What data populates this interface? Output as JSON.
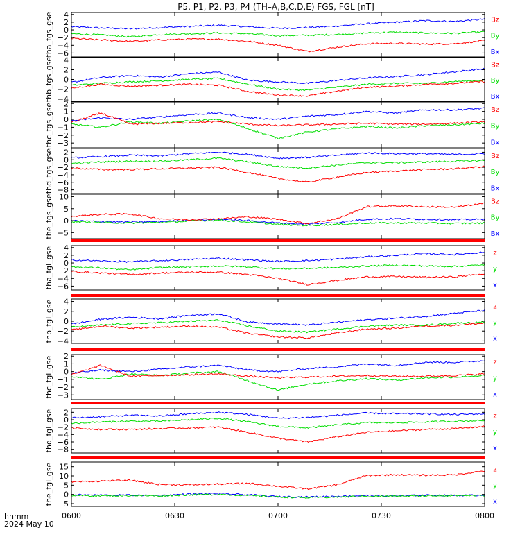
{
  "title": "P5, P1, P2, P3, P4 (TH–A,B,C,D,E) FGS, FGL [nT]",
  "x_axis": {
    "ticks": [
      "0600",
      "0630",
      "0700",
      "0730",
      "0800"
    ],
    "tick_values_min": [
      0,
      30,
      60,
      90,
      120
    ],
    "range_min": [
      0,
      120
    ],
    "footer_label": "hhmm",
    "footer_date": "2024 May 10"
  },
  "colors": {
    "x": "#0000ff",
    "y": "#00dd00",
    "z": "#ff0000",
    "frame": "#000000",
    "separator": "#ff0000"
  },
  "chart_data": [
    {
      "type": "line",
      "ylabel": "tha_fgs_gse",
      "yticks": [
        "4",
        "2",
        "0",
        "−2",
        "−4",
        "−6"
      ],
      "ytick_values": [
        4,
        2,
        0,
        -2,
        -4,
        -6
      ],
      "ylim": [
        -7,
        4.5
      ],
      "legend": [
        "Bz",
        "By",
        "Bx"
      ],
      "series": [
        {
          "name": "Bx",
          "values": [
            0.8,
            0.5,
            0.3,
            0.6,
            0.9,
            1.2,
            0.8,
            0.4,
            0.6,
            1.0,
            1.6,
            2.0,
            2.4,
            2.2,
            2.8
          ]
        },
        {
          "name": "By",
          "values": [
            -1.0,
            -1.3,
            -1.8,
            -1.2,
            -1.0,
            -0.8,
            -1.0,
            -1.5,
            -1.4,
            -1.2,
            -0.8,
            -0.6,
            -0.8,
            -0.9,
            -0.5
          ]
        },
        {
          "name": "Bz",
          "values": [
            -2.2,
            -2.6,
            -3.0,
            -2.6,
            -2.4,
            -2.4,
            -3.0,
            -4.0,
            -5.6,
            -4.5,
            -3.6,
            -3.5,
            -3.7,
            -3.6,
            -2.8
          ]
        }
      ]
    },
    {
      "type": "line",
      "ylabel": "thb_fgs_gse",
      "yticks": [
        "4",
        "2",
        "0",
        "−2",
        "−4"
      ],
      "ytick_values": [
        4,
        2,
        0,
        -2,
        -4
      ],
      "ylim": [
        -4.5,
        4.5
      ],
      "legend": [
        "Bz",
        "By",
        "Bx"
      ],
      "series": [
        {
          "name": "Bx",
          "values": [
            -0.6,
            0.4,
            0.8,
            0.5,
            1.2,
            1.5,
            -0.2,
            -0.5,
            -0.8,
            -0.2,
            0.3,
            0.6,
            1.0,
            1.6,
            2.2
          ]
        },
        {
          "name": "By",
          "values": [
            -1.2,
            -0.8,
            -0.5,
            -0.3,
            0.0,
            0.2,
            -1.0,
            -2.0,
            -2.2,
            -1.6,
            -1.0,
            -0.8,
            -0.8,
            -0.4,
            -0.2
          ]
        },
        {
          "name": "Bz",
          "values": [
            -1.8,
            -1.0,
            -1.4,
            -1.2,
            -1.0,
            -1.2,
            -2.5,
            -3.2,
            -3.4,
            -2.4,
            -1.6,
            -1.4,
            -1.0,
            -0.8,
            -0.4
          ]
        }
      ]
    },
    {
      "type": "line",
      "ylabel": "thc_fgs_gse",
      "yticks": [
        "2",
        "1",
        "0",
        "−1",
        "−2",
        "−3"
      ],
      "ytick_values": [
        2,
        1,
        0,
        -1,
        -2,
        -3
      ],
      "ylim": [
        -3.6,
        2.2
      ],
      "legend": [
        "Bz",
        "By",
        "Bx"
      ],
      "series": [
        {
          "name": "Bx",
          "values": [
            -0.2,
            0.2,
            0.0,
            0.3,
            0.6,
            0.8,
            0.2,
            0.0,
            0.4,
            0.6,
            1.0,
            0.8,
            1.2,
            1.2,
            1.4
          ]
        },
        {
          "name": "By",
          "values": [
            -0.6,
            -1.0,
            -0.3,
            -0.5,
            -0.2,
            0.0,
            -1.2,
            -2.4,
            -1.6,
            -1.2,
            -0.9,
            -1.1,
            -0.8,
            -0.7,
            -0.5
          ]
        },
        {
          "name": "Bz",
          "values": [
            -0.4,
            0.8,
            -0.6,
            -0.5,
            -0.4,
            -0.3,
            -0.6,
            -0.8,
            -0.7,
            -0.6,
            -0.5,
            -0.6,
            -0.6,
            -0.5,
            -0.3
          ]
        }
      ]
    },
    {
      "type": "line",
      "ylabel": "thd_fgs_gse",
      "yticks": [
        "2",
        "0",
        "−2",
        "−4",
        "−6",
        "−8"
      ],
      "ytick_values": [
        2,
        0,
        -2,
        -4,
        -6,
        -8
      ],
      "ylim": [
        -9,
        3
      ],
      "legend": [
        "Bz",
        "By",
        "Bx"
      ],
      "series": [
        {
          "name": "Bx",
          "values": [
            0.5,
            0.8,
            1.2,
            1.0,
            1.6,
            2.0,
            1.4,
            0.4,
            0.6,
            1.2,
            1.8,
            1.6,
            1.6,
            1.4,
            1.6
          ]
        },
        {
          "name": "By",
          "values": [
            -1.0,
            -0.6,
            -0.4,
            -0.4,
            0.0,
            0.4,
            -0.6,
            -1.8,
            -2.2,
            -1.4,
            -0.8,
            -0.8,
            -0.6,
            -0.4,
            -0.2
          ]
        },
        {
          "name": "Bz",
          "values": [
            -2.2,
            -2.6,
            -2.6,
            -2.4,
            -2.2,
            -2.0,
            -3.4,
            -5.0,
            -6.0,
            -4.6,
            -3.4,
            -3.0,
            -2.6,
            -2.4,
            -1.8
          ]
        }
      ]
    },
    {
      "type": "line",
      "ylabel": "the_fgs_gse",
      "yticks": [
        "10",
        "5",
        "0",
        "−5"
      ],
      "ytick_values": [
        10,
        5,
        0,
        -5
      ],
      "ylim": [
        -7.5,
        11
      ],
      "legend": [
        "Bz",
        "By",
        "Bx"
      ],
      "series": [
        {
          "name": "Bx",
          "values": [
            0.0,
            -0.4,
            -0.6,
            -0.4,
            0.2,
            0.6,
            0.0,
            -1.0,
            -1.4,
            -0.8,
            0.6,
            0.8,
            0.6,
            0.4,
            0.6
          ]
        },
        {
          "name": "By",
          "values": [
            -0.4,
            -0.8,
            -1.0,
            -0.8,
            -0.2,
            0.2,
            -0.6,
            -1.6,
            -2.0,
            -1.6,
            -1.0,
            -1.0,
            -1.0,
            -1.2,
            -1.0
          ]
        },
        {
          "name": "Bz",
          "values": [
            1.8,
            2.6,
            2.8,
            0.8,
            0.4,
            0.8,
            1.6,
            0.6,
            -1.2,
            0.8,
            5.8,
            6.2,
            5.8,
            5.6,
            7.2
          ]
        }
      ]
    },
    {
      "type": "line",
      "ylabel": "tha_fgl_gse",
      "yticks": [
        "4",
        "2",
        "0",
        "−2",
        "−4",
        "−6"
      ],
      "ytick_values": [
        4,
        2,
        0,
        -2,
        -4,
        -6
      ],
      "ylim": [
        -7,
        4.5
      ],
      "legend": [
        "z",
        "y",
        "x"
      ],
      "series": [
        {
          "name": "x",
          "values": [
            0.8,
            0.5,
            0.3,
            0.6,
            0.9,
            1.2,
            0.8,
            0.4,
            0.6,
            1.0,
            1.6,
            2.0,
            2.4,
            2.2,
            2.8
          ]
        },
        {
          "name": "y",
          "values": [
            -1.0,
            -1.3,
            -1.8,
            -1.2,
            -1.0,
            -0.8,
            -1.0,
            -1.5,
            -1.4,
            -1.2,
            -0.8,
            -0.6,
            -0.8,
            -0.9,
            -0.5
          ]
        },
        {
          "name": "z",
          "values": [
            -2.2,
            -2.6,
            -3.0,
            -2.6,
            -2.4,
            -2.4,
            -3.0,
            -4.0,
            -5.6,
            -4.5,
            -3.6,
            -3.5,
            -3.7,
            -3.6,
            -2.8
          ]
        }
      ]
    },
    {
      "type": "line",
      "ylabel": "thb_fgl_gse",
      "yticks": [
        "4",
        "2",
        "0",
        "−2",
        "−4"
      ],
      "ytick_values": [
        4,
        2,
        0,
        -2,
        -4
      ],
      "ylim": [
        -4.5,
        4.5
      ],
      "legend": [
        "z",
        "y",
        "x"
      ],
      "series": [
        {
          "name": "x",
          "values": [
            -0.6,
            0.4,
            0.8,
            0.5,
            1.2,
            1.5,
            -0.2,
            -0.5,
            -0.8,
            -0.2,
            0.3,
            0.6,
            1.0,
            1.6,
            2.2
          ]
        },
        {
          "name": "y",
          "values": [
            -1.2,
            -0.8,
            -0.5,
            -0.3,
            0.0,
            0.2,
            -1.0,
            -2.0,
            -2.2,
            -1.6,
            -1.0,
            -0.8,
            -0.8,
            -0.4,
            -0.2
          ]
        },
        {
          "name": "z",
          "values": [
            -1.8,
            -1.0,
            -1.4,
            -1.2,
            -1.0,
            -1.2,
            -2.5,
            -3.2,
            -3.4,
            -2.4,
            -1.6,
            -1.4,
            -1.0,
            -0.8,
            -0.4
          ]
        }
      ]
    },
    {
      "type": "line",
      "ylabel": "thc_fgl_gse",
      "yticks": [
        "2",
        "1",
        "0",
        "−1",
        "−2",
        "−3"
      ],
      "ytick_values": [
        2,
        1,
        0,
        -1,
        -2,
        -3
      ],
      "ylim": [
        -3.6,
        2.2
      ],
      "legend": [
        "z",
        "y",
        "x"
      ],
      "series": [
        {
          "name": "x",
          "values": [
            -0.2,
            0.2,
            0.0,
            0.3,
            0.6,
            0.8,
            0.2,
            0.0,
            0.4,
            0.6,
            1.0,
            0.8,
            1.2,
            1.2,
            1.4
          ]
        },
        {
          "name": "y",
          "values": [
            -0.6,
            -1.0,
            -0.3,
            -0.5,
            -0.2,
            0.0,
            -1.2,
            -2.4,
            -1.6,
            -1.2,
            -0.9,
            -1.1,
            -0.8,
            -0.7,
            -0.5
          ]
        },
        {
          "name": "z",
          "values": [
            -0.4,
            0.8,
            -0.6,
            -0.5,
            -0.4,
            -0.3,
            -0.6,
            -0.8,
            -0.7,
            -0.6,
            -0.5,
            -0.6,
            -0.6,
            -0.5,
            -0.3
          ]
        }
      ]
    },
    {
      "type": "line",
      "ylabel": "thd_fgl_gse",
      "yticks": [
        "2",
        "0",
        "−2",
        "−4",
        "−6",
        "−8"
      ],
      "ytick_values": [
        2,
        0,
        -2,
        -4,
        -6,
        -8
      ],
      "ylim": [
        -9,
        3
      ],
      "legend": [
        "z",
        "y",
        "x"
      ],
      "series": [
        {
          "name": "x",
          "values": [
            0.5,
            0.8,
            1.2,
            1.0,
            1.6,
            2.0,
            1.4,
            0.4,
            0.6,
            1.2,
            1.8,
            1.6,
            1.6,
            1.4,
            1.6
          ]
        },
        {
          "name": "y",
          "values": [
            -1.0,
            -0.6,
            -0.4,
            -0.4,
            0.0,
            0.4,
            -0.6,
            -1.8,
            -2.2,
            -1.4,
            -0.8,
            -0.8,
            -0.6,
            -0.4,
            -0.2
          ]
        },
        {
          "name": "z",
          "values": [
            -2.2,
            -2.6,
            -2.6,
            -2.4,
            -2.2,
            -2.0,
            -3.4,
            -5.0,
            -6.0,
            -4.6,
            -3.4,
            -3.0,
            -2.6,
            -2.4,
            -1.8
          ]
        }
      ]
    },
    {
      "type": "line",
      "ylabel": "the_fgl_gse",
      "yticks": [
        "15",
        "10",
        "5",
        "0",
        "−5"
      ],
      "ytick_values": [
        15,
        10,
        5,
        0,
        -5
      ],
      "ylim": [
        -6.5,
        17.5
      ],
      "legend": [
        "z",
        "y",
        "x"
      ],
      "series": [
        {
          "name": "x",
          "values": [
            -0.2,
            -0.4,
            -0.4,
            -0.6,
            0.2,
            0.4,
            -0.2,
            -1.2,
            -1.4,
            -1.0,
            -0.6,
            -0.8,
            -0.4,
            -0.6,
            -0.4
          ]
        },
        {
          "name": "y",
          "values": [
            -0.6,
            -0.8,
            -0.6,
            -0.8,
            -0.2,
            0.0,
            -0.6,
            -1.4,
            -1.8,
            -1.4,
            -1.0,
            -1.0,
            -0.8,
            -0.6,
            -0.6
          ]
        },
        {
          "name": "z",
          "values": [
            6.8,
            7.2,
            7.6,
            5.4,
            5.2,
            5.6,
            6.0,
            4.4,
            3.0,
            5.2,
            10.2,
            10.6,
            10.4,
            10.6,
            12.8
          ]
        }
      ]
    }
  ]
}
